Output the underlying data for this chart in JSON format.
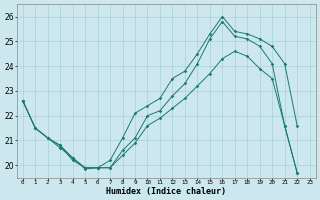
{
  "title": "",
  "xlabel": "Humidex (Indice chaleur)",
  "bg_color": "#cce8ee",
  "grid_color": "#aacfd8",
  "line_color": "#1a7a6e",
  "xlim": [
    -0.5,
    23.5
  ],
  "ylim": [
    19.5,
    26.5
  ],
  "yticks": [
    20,
    21,
    22,
    23,
    24,
    25,
    26
  ],
  "xticks": [
    0,
    1,
    2,
    3,
    4,
    5,
    6,
    7,
    8,
    9,
    10,
    11,
    12,
    13,
    14,
    15,
    16,
    17,
    18,
    19,
    20,
    21,
    22,
    23
  ],
  "line1_x": [
    0,
    1,
    2,
    3,
    4,
    5,
    6,
    7,
    8,
    9,
    10,
    11,
    12,
    13,
    14,
    15,
    16,
    17,
    18,
    19,
    20,
    21,
    22
  ],
  "line1_y": [
    22.6,
    21.5,
    21.1,
    20.7,
    20.3,
    19.9,
    19.9,
    19.9,
    20.6,
    21.1,
    22.0,
    22.2,
    22.8,
    23.3,
    24.1,
    25.1,
    25.8,
    25.2,
    25.1,
    24.8,
    24.1,
    21.6,
    19.7
  ],
  "line2_x": [
    0,
    1,
    2,
    3,
    4,
    5,
    6,
    7,
    8,
    9,
    10,
    11,
    12,
    13,
    14,
    15,
    16,
    17,
    18,
    19,
    20,
    21,
    22
  ],
  "line2_y": [
    22.6,
    21.5,
    21.1,
    20.8,
    20.3,
    19.85,
    19.9,
    20.2,
    21.1,
    22.1,
    22.4,
    22.7,
    23.5,
    23.8,
    24.5,
    25.3,
    26.0,
    25.4,
    25.3,
    25.1,
    24.8,
    24.1,
    21.6
  ],
  "line3_x": [
    0,
    1,
    2,
    3,
    4,
    5,
    6,
    7,
    8,
    9,
    10,
    11,
    12,
    13,
    14,
    15,
    16,
    17,
    18,
    19,
    20,
    21,
    22
  ],
  "line3_y": [
    22.6,
    21.5,
    21.1,
    20.8,
    20.2,
    19.9,
    19.9,
    19.9,
    20.4,
    20.9,
    21.6,
    21.9,
    22.3,
    22.7,
    23.2,
    23.7,
    24.3,
    24.6,
    24.4,
    23.9,
    23.5,
    21.6,
    19.7
  ]
}
